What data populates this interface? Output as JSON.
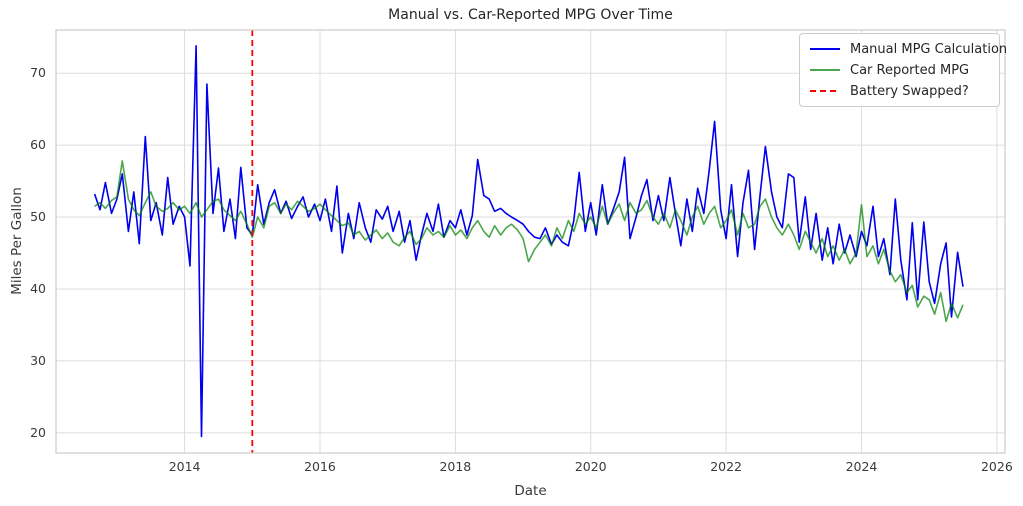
{
  "figure": {
    "title": "Manual vs. Car-Reported MPG Over Time",
    "xlabel": "Date",
    "ylabel": "Miles Per Gallon"
  },
  "legend": {
    "items": [
      {
        "label": "Manual MPG Calculation",
        "color": "#0000ee",
        "dashed": false
      },
      {
        "label": "Car Reported MPG",
        "color": "#4da64d",
        "dashed": false
      },
      {
        "label": "Battery Swapped?",
        "color": "#ff0000",
        "dashed": true
      }
    ]
  },
  "chart_data": {
    "type": "line",
    "title": "Manual vs. Car-Reported MPG Over Time",
    "xlabel": "Date",
    "ylabel": "Miles Per Gallon",
    "xlim": [
      2012.1,
      2026.12
    ],
    "ylim": [
      17.2,
      76.0
    ],
    "xticks": [
      2014,
      2016,
      2018,
      2020,
      2022,
      2024,
      2026
    ],
    "yticks": [
      20,
      30,
      40,
      50,
      60,
      70
    ],
    "grid": true,
    "grid_color": "#dddddd",
    "frame_color": "#cccccc",
    "legend_position": "upper right",
    "event_line": {
      "label": "Battery Swapped?",
      "x": 2015.0,
      "color": "#ff0000",
      "style": "dashed"
    },
    "x": [
      2012.67,
      2012.75,
      2012.83,
      2012.92,
      2013.0,
      2013.08,
      2013.17,
      2013.25,
      2013.33,
      2013.42,
      2013.5,
      2013.58,
      2013.67,
      2013.75,
      2013.83,
      2013.92,
      2014.0,
      2014.08,
      2014.17,
      2014.25,
      2014.33,
      2014.42,
      2014.5,
      2014.58,
      2014.67,
      2014.75,
      2014.83,
      2014.92,
      2015.0,
      2015.08,
      2015.17,
      2015.25,
      2015.33,
      2015.42,
      2015.5,
      2015.58,
      2015.67,
      2015.75,
      2015.83,
      2015.92,
      2016.0,
      2016.08,
      2016.17,
      2016.25,
      2016.33,
      2016.42,
      2016.5,
      2016.58,
      2016.67,
      2016.75,
      2016.83,
      2016.92,
      2017.0,
      2017.08,
      2017.17,
      2017.25,
      2017.33,
      2017.42,
      2017.5,
      2017.58,
      2017.67,
      2017.75,
      2017.83,
      2017.92,
      2018.0,
      2018.08,
      2018.17,
      2018.25,
      2018.33,
      2018.42,
      2018.5,
      2018.58,
      2018.67,
      2018.75,
      2018.83,
      2018.92,
      2019.0,
      2019.08,
      2019.17,
      2019.25,
      2019.33,
      2019.42,
      2019.5,
      2019.58,
      2019.67,
      2019.75,
      2019.83,
      2019.92,
      2020.0,
      2020.08,
      2020.17,
      2020.25,
      2020.33,
      2020.42,
      2020.5,
      2020.58,
      2020.67,
      2020.75,
      2020.83,
      2020.92,
      2021.0,
      2021.08,
      2021.17,
      2021.25,
      2021.33,
      2021.42,
      2021.5,
      2021.58,
      2021.67,
      2021.75,
      2021.83,
      2021.92,
      2022.0,
      2022.08,
      2022.17,
      2022.25,
      2022.33,
      2022.42,
      2022.5,
      2022.58,
      2022.67,
      2022.75,
      2022.83,
      2022.92,
      2023.0,
      2023.08,
      2023.17,
      2023.25,
      2023.33,
      2023.42,
      2023.5,
      2023.58,
      2023.67,
      2023.75,
      2023.83,
      2023.92,
      2024.0,
      2024.08,
      2024.17,
      2024.25,
      2024.33,
      2024.42,
      2024.5,
      2024.58,
      2024.67,
      2024.75,
      2024.83,
      2024.92,
      2025.0,
      2025.08,
      2025.17,
      2025.25,
      2025.33,
      2025.42,
      2025.5
    ],
    "series": [
      {
        "name": "Manual MPG Calculation",
        "color": "#0000ee",
        "opacity": 1.0,
        "values": [
          53.2,
          51.0,
          54.8,
          50.5,
          52.5,
          56.0,
          48.0,
          53.5,
          46.3,
          61.2,
          49.5,
          52.0,
          47.5,
          55.5,
          49.0,
          51.5,
          50.0,
          43.2,
          73.8,
          19.5,
          68.5,
          50.5,
          56.8,
          48.0,
          52.5,
          47.0,
          56.9,
          48.5,
          47.5,
          54.5,
          49.0,
          52.0,
          53.8,
          50.5,
          52.2,
          49.8,
          51.5,
          52.8,
          50.0,
          51.8,
          49.5,
          52.5,
          48.0,
          54.3,
          45.0,
          50.5,
          47.0,
          52.0,
          48.5,
          46.5,
          51.0,
          49.7,
          51.5,
          48.0,
          50.8,
          46.5,
          49.5,
          44.0,
          47.5,
          50.5,
          48.0,
          51.8,
          47.2,
          49.5,
          48.5,
          51.0,
          47.5,
          50.2,
          58.0,
          53.0,
          52.5,
          50.8,
          51.2,
          50.5,
          50.0,
          49.5,
          49.0,
          48.0,
          47.2,
          47.0,
          48.5,
          46.2,
          47.5,
          46.5,
          46.0,
          49.5,
          56.2,
          48.0,
          52.0,
          47.5,
          54.5,
          49.0,
          51.0,
          53.5,
          58.3,
          47.0,
          50.0,
          53.0,
          55.2,
          49.5,
          53.0,
          49.5,
          55.5,
          50.5,
          46.0,
          52.5,
          48.0,
          54.0,
          50.5,
          56.5,
          63.3,
          51.0,
          47.0,
          54.5,
          44.5,
          52.0,
          56.5,
          45.5,
          53.0,
          59.8,
          53.5,
          50.0,
          48.5,
          56.0,
          55.5,
          46.5,
          52.8,
          45.5,
          50.5,
          44.0,
          48.5,
          43.5,
          49.0,
          45.0,
          47.5,
          44.5,
          48.0,
          46.0,
          51.5,
          44.5,
          47.0,
          42.0,
          52.5,
          44.0,
          38.5,
          49.2,
          38.5,
          49.3,
          41.0,
          38.0,
          43.5,
          46.4,
          36.1,
          45.1,
          40.3
        ]
      },
      {
        "name": "Car Reported MPG",
        "color": "#008000",
        "opacity": 0.7,
        "values": [
          51.5,
          52.0,
          51.2,
          52.3,
          52.8,
          57.8,
          52.5,
          51.0,
          50.2,
          52.0,
          53.5,
          51.5,
          50.8,
          51.2,
          52.0,
          51.0,
          51.5,
          50.5,
          52.0,
          50.0,
          51.0,
          52.2,
          52.5,
          51.0,
          50.2,
          49.5,
          50.8,
          49.0,
          47.2,
          50.0,
          48.5,
          51.5,
          52.0,
          50.5,
          51.8,
          51.0,
          52.2,
          51.5,
          50.8,
          51.2,
          51.8,
          51.0,
          50.2,
          49.5,
          48.8,
          49.2,
          47.5,
          48.0,
          46.8,
          47.5,
          48.2,
          47.0,
          47.8,
          46.5,
          46.0,
          47.2,
          48.0,
          46.2,
          47.0,
          48.5,
          47.5,
          48.0,
          47.2,
          48.8,
          47.5,
          48.2,
          47.0,
          48.5,
          49.5,
          48.0,
          47.2,
          48.8,
          47.5,
          48.5,
          49.0,
          48.2,
          47.0,
          43.8,
          45.5,
          46.5,
          47.5,
          46.0,
          48.5,
          47.0,
          49.5,
          48.0,
          50.5,
          49.0,
          50.0,
          48.5,
          51.5,
          49.0,
          50.5,
          51.8,
          49.5,
          52.0,
          50.5,
          51.0,
          52.3,
          50.0,
          49.0,
          50.5,
          48.5,
          51.0,
          49.5,
          47.5,
          50.0,
          51.5,
          49.0,
          50.5,
          51.5,
          48.5,
          49.5,
          51.0,
          47.5,
          50.5,
          48.5,
          49.0,
          51.5,
          52.5,
          50.0,
          48.5,
          47.5,
          49.0,
          47.5,
          45.5,
          48.0,
          46.5,
          45.0,
          47.0,
          44.5,
          46.0,
          44.0,
          45.5,
          43.5,
          45.0,
          51.7,
          44.5,
          46.0,
          43.5,
          45.5,
          42.5,
          41.0,
          42.0,
          39.5,
          40.5,
          37.5,
          39.0,
          38.5,
          36.5,
          39.5,
          35.5,
          38.0,
          36.0,
          37.8
        ]
      }
    ]
  }
}
